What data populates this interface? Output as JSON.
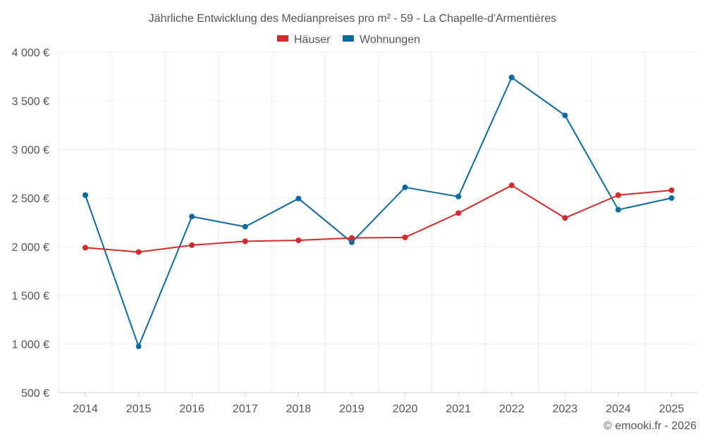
{
  "chart_data": {
    "type": "line",
    "title": "Jährliche Entwicklung des Medianpreises pro m² - 59 - La Chapelle-d'Armentières",
    "xlabel": "",
    "ylabel": "",
    "categories": [
      "2014",
      "2015",
      "2016",
      "2017",
      "2018",
      "2019",
      "2020",
      "2021",
      "2022",
      "2023",
      "2024",
      "2025"
    ],
    "ylim": [
      500,
      4000
    ],
    "yticks": [
      500,
      1000,
      1500,
      2000,
      2500,
      3000,
      3500,
      4000
    ],
    "ytick_labels": [
      "500 €",
      "1 000 €",
      "1 500 €",
      "2 000 €",
      "2 500 €",
      "3 000 €",
      "3 500 €",
      "4 000 €"
    ],
    "grid": true,
    "legend_position": "top-center",
    "series": [
      {
        "name": "Häuser",
        "color": "#d42a2a",
        "values": [
          1990,
          1945,
          2015,
          2055,
          2065,
          2090,
          2095,
          2345,
          2630,
          2295,
          2530,
          2580
        ]
      },
      {
        "name": "Wohnungen",
        "color": "#0d6aa0",
        "values": [
          2530,
          975,
          2310,
          2205,
          2495,
          2045,
          2610,
          2515,
          3740,
          3350,
          2380,
          2500
        ]
      }
    ]
  },
  "credit": "© emooki.fr - 2026",
  "colors": {
    "grid": "#ebebeb",
    "axis": "#cfcfcf",
    "text": "#555555"
  }
}
